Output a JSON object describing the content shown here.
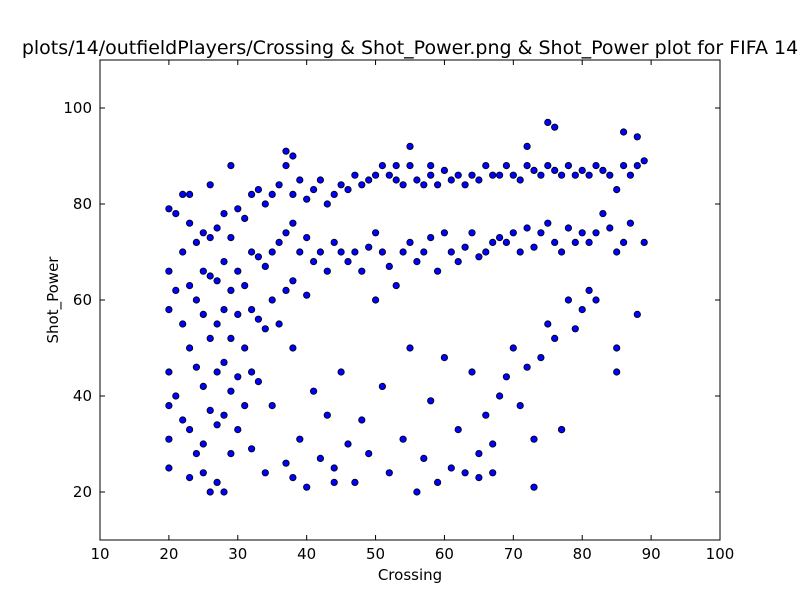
{
  "chart_data": {
    "type": "scatter",
    "title": "plots/14/outfieldPlayers/Crossing & Shot_Power.png & Shot_Power plot for FIFA 14",
    "xlabel": "Crossing",
    "ylabel": "Shot_Power",
    "xlim": [
      10,
      100
    ],
    "ylim": [
      10,
      110
    ],
    "xticks": [
      10,
      20,
      30,
      40,
      50,
      60,
      70,
      80,
      90,
      100
    ],
    "yticks": [
      20,
      40,
      60,
      80,
      100
    ],
    "grid": false,
    "legend": "none",
    "marker_color": "#0000ff",
    "marker_edge_color": "#000000",
    "series": [
      {
        "x": [
          20,
          20,
          20,
          20,
          20,
          20,
          20,
          21,
          21,
          21,
          22,
          22,
          22,
          23,
          23,
          23,
          23,
          23,
          24,
          24,
          24,
          24,
          25,
          25,
          25,
          25,
          25,
          25,
          26,
          26,
          26,
          26,
          26,
          27,
          27,
          27,
          27,
          27,
          27,
          28,
          28,
          28,
          28,
          28,
          28,
          29,
          29,
          29,
          29,
          29,
          30,
          30,
          30,
          30,
          30,
          31,
          31,
          31,
          31,
          32,
          32,
          32,
          32,
          32,
          33,
          33,
          33,
          33,
          34,
          34,
          34,
          34,
          35,
          35,
          35,
          35,
          36,
          36,
          36,
          37,
          37,
          37,
          37,
          38,
          38,
          38,
          38,
          38,
          39,
          39,
          39,
          40,
          40,
          40,
          40,
          41,
          41,
          41,
          42,
          42,
          42,
          43,
          43,
          43,
          44,
          44,
          44,
          45,
          45,
          45,
          46,
          46,
          46,
          47,
          47,
          47,
          48,
          48,
          48,
          49,
          49,
          49,
          50,
          50,
          50,
          51,
          51,
          51,
          52,
          52,
          52,
          53,
          53,
          54,
          54,
          54,
          55,
          55,
          55,
          56,
          56,
          56,
          57,
          57,
          57,
          58,
          58,
          58,
          59,
          59,
          59,
          60,
          60,
          60,
          61,
          61,
          61,
          62,
          62,
          62,
          63,
          63,
          63,
          64,
          64,
          64,
          65,
          65,
          65,
          66,
          66,
          66,
          67,
          67,
          67,
          68,
          68,
          68,
          69,
          69,
          69,
          70,
          70,
          70,
          71,
          71,
          71,
          72,
          72,
          72,
          73,
          73,
          73,
          74,
          74,
          74,
          75,
          75,
          75,
          76,
          76,
          76,
          77,
          77,
          77,
          78,
          78,
          78,
          79,
          79,
          79,
          80,
          80,
          80,
          81,
          81,
          81,
          82,
          82,
          82,
          83,
          83,
          84,
          84,
          85,
          85,
          86,
          86,
          87,
          87,
          88,
          88,
          89,
          89,
          76,
          75,
          72,
          86,
          55,
          53,
          58,
          85,
          85,
          88,
          29,
          37,
          38,
          44,
          73,
          77,
          22,
          23,
          26,
          65,
          67
        ],
        "y": [
          79,
          66,
          58,
          45,
          38,
          31,
          25,
          78,
          62,
          40,
          70,
          55,
          35,
          76,
          63,
          50,
          33,
          23,
          72,
          60,
          46,
          28,
          74,
          66,
          57,
          42,
          30,
          24,
          73,
          65,
          52,
          37,
          20,
          75,
          64,
          55,
          45,
          34,
          22,
          78,
          68,
          58,
          47,
          36,
          20,
          73,
          62,
          52,
          41,
          28,
          79,
          66,
          57,
          44,
          33,
          77,
          63,
          50,
          38,
          82,
          70,
          58,
          45,
          29,
          83,
          69,
          56,
          43,
          80,
          67,
          54,
          24,
          82,
          70,
          60,
          38,
          84,
          72,
          55,
          88,
          74,
          62,
          26,
          82,
          76,
          64,
          50,
          23,
          85,
          70,
          31,
          81,
          73,
          61,
          21,
          83,
          68,
          41,
          85,
          70,
          27,
          80,
          66,
          36,
          82,
          72,
          25,
          84,
          70,
          45,
          83,
          68,
          30,
          86,
          70,
          22,
          84,
          66,
          35,
          85,
          71,
          28,
          86,
          74,
          60,
          88,
          70,
          42,
          86,
          67,
          24,
          85,
          63,
          84,
          70,
          31,
          88,
          72,
          50,
          85,
          68,
          20,
          84,
          70,
          27,
          86,
          73,
          39,
          84,
          66,
          22,
          87,
          74,
          48,
          85,
          70,
          25,
          86,
          68,
          33,
          84,
          71,
          24,
          86,
          74,
          45,
          85,
          69,
          28,
          88,
          70,
          36,
          86,
          72,
          30,
          86,
          73,
          40,
          88,
          72,
          44,
          86,
          74,
          50,
          85,
          70,
          38,
          88,
          75,
          46,
          87,
          71,
          31,
          86,
          74,
          48,
          88,
          76,
          55,
          87,
          72,
          52,
          86,
          70,
          33,
          88,
          75,
          60,
          86,
          72,
          54,
          87,
          74,
          58,
          86,
          72,
          62,
          88,
          74,
          60,
          87,
          78,
          86,
          75,
          83,
          70,
          88,
          72,
          86,
          76,
          88,
          57,
          89,
          72,
          96,
          97,
          92,
          95,
          92,
          88,
          88,
          50,
          45,
          94,
          88,
          91,
          90,
          22,
          21,
          33,
          82,
          82,
          84,
          23,
          24
        ]
      }
    ]
  }
}
